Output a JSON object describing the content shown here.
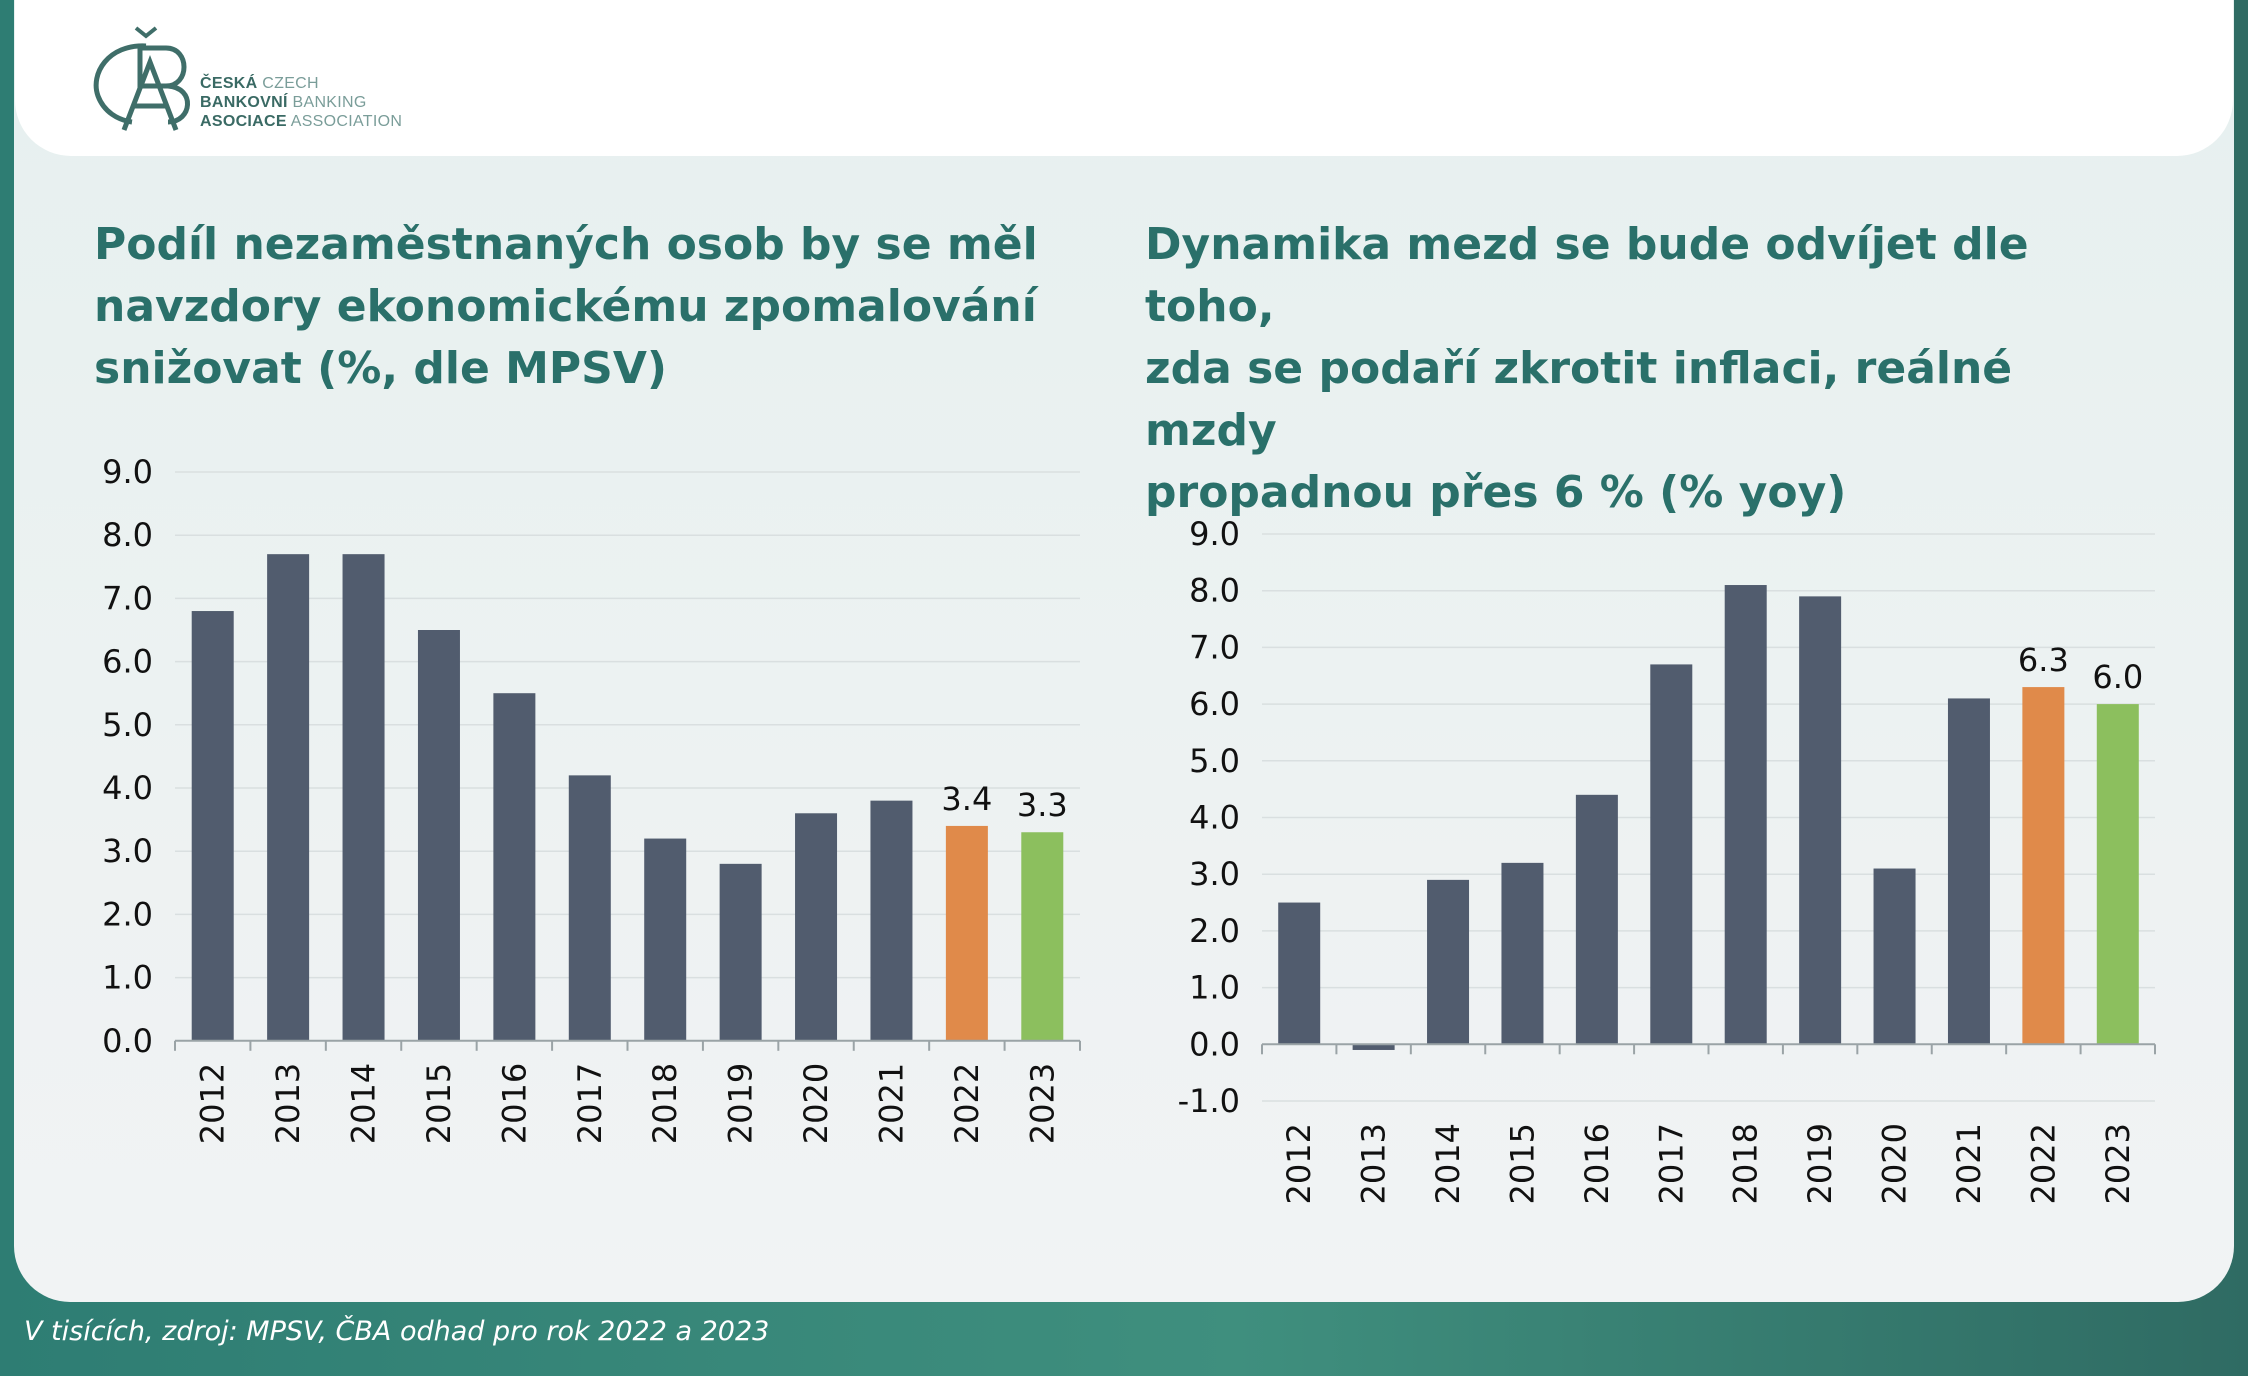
{
  "logo": {
    "lines": [
      {
        "cz": "ČESKÁ",
        "en": "CZECH"
      },
      {
        "cz": "BANKOVNÍ",
        "en": "BANKING"
      },
      {
        "cz": "ASOCIACE",
        "en": "ASSOCIATION"
      }
    ]
  },
  "colors": {
    "bar_default": "#515c6e",
    "bar_2022": "#e08a4a",
    "bar_2023": "#8cbf5e",
    "title": "#2a706a"
  },
  "footer": {
    "note": "V tisících, zdroj: MPSV, ČBA odhad pro rok 2022 a 2023"
  },
  "chart_data": [
    {
      "type": "bar",
      "title": "Podíl nezaměstnaných osob by se měl navzdory ekonomickému zpomalování snižovat (%, dle MPSV)",
      "title_lines": [
        "Podíl nezaměstnaných osob by se měl",
        "navzdory ekonomickému zpomalování",
        "snižovat (%, dle MPSV)"
      ],
      "categories": [
        "2012",
        "2013",
        "2014",
        "2015",
        "2016",
        "2017",
        "2018",
        "2019",
        "2020",
        "2021",
        "2022",
        "2023"
      ],
      "values": [
        6.8,
        7.7,
        7.7,
        6.5,
        5.5,
        4.2,
        3.2,
        2.8,
        3.6,
        3.8,
        3.4,
        3.3
      ],
      "data_labels": {
        "2022": "3.4",
        "2023": "3.3"
      },
      "ylim": [
        0,
        9
      ],
      "yticks": [
        "0.0",
        "1.0",
        "2.0",
        "3.0",
        "4.0",
        "5.0",
        "6.0",
        "7.0",
        "8.0",
        "9.0"
      ],
      "grid": true
    },
    {
      "type": "bar",
      "title": "Dynamika mezd se bude odvíjet dle toho, zda se podaří zkrotit inflaci, reálné mzdy propadnou přes 6 % (% yoy)",
      "title_lines": [
        "Dynamika mezd se bude odvíjet dle toho,",
        "zda se podaří zkrotit inflaci, reálné mzdy",
        "propadnou přes 6 % (% yoy)"
      ],
      "categories": [
        "2012",
        "2013",
        "2014",
        "2015",
        "2016",
        "2017",
        "2018",
        "2019",
        "2020",
        "2021",
        "2022",
        "2023"
      ],
      "values": [
        2.5,
        -0.1,
        2.9,
        3.2,
        4.4,
        6.7,
        8.1,
        7.9,
        3.1,
        6.1,
        6.3,
        6.0
      ],
      "data_labels": {
        "2022": "6.3",
        "2023": "6.0"
      },
      "ylim": [
        -1,
        9
      ],
      "yticks": [
        "-1.0",
        "0.0",
        "1.0",
        "2.0",
        "3.0",
        "4.0",
        "5.0",
        "6.0",
        "7.0",
        "8.0",
        "9.0"
      ],
      "grid": true
    }
  ]
}
